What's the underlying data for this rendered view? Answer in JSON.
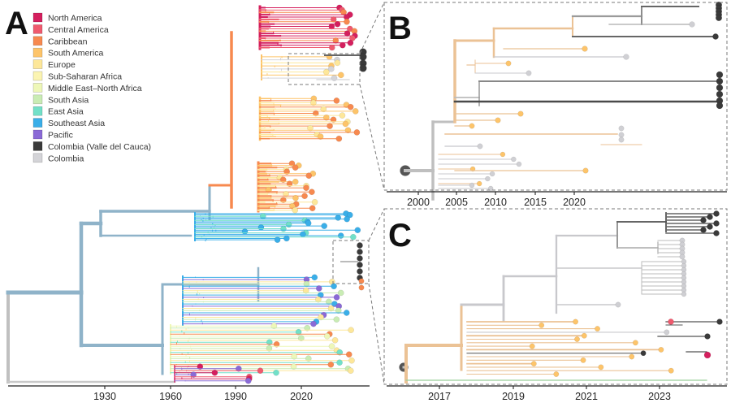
{
  "panels": {
    "A": {
      "label": "A",
      "axis_ticks": [
        "1930",
        "1960",
        "1990",
        "2020"
      ]
    },
    "B": {
      "label": "B",
      "axis_ticks": [
        "2000",
        "2005",
        "2010",
        "2015",
        "2020"
      ]
    },
    "C": {
      "label": "C",
      "axis_ticks": [
        "2017",
        "2019",
        "2021",
        "2023"
      ]
    }
  },
  "legend": [
    {
      "label": "North America",
      "color": "#d41f5e"
    },
    {
      "label": "Central America",
      "color": "#ef5a6e"
    },
    {
      "label": "Caribbean",
      "color": "#f7894f"
    },
    {
      "label": "South America",
      "color": "#fdc46a"
    },
    {
      "label": "Europe",
      "color": "#fde79a"
    },
    {
      "label": "Sub-Saharan Africa",
      "color": "#fbf4b2"
    },
    {
      "label": "Middle East–North Africa",
      "color": "#eef7b8"
    },
    {
      "label": "South Asia",
      "color": "#c9ecb4"
    },
    {
      "label": "East Asia",
      "color": "#72e0c8"
    },
    {
      "label": "Southeast Asia",
      "color": "#3aaee8"
    },
    {
      "label": "Pacific",
      "color": "#8a6ad6"
    },
    {
      "label": "Colombia (Valle del Cauca)",
      "color": "#3a3a3a"
    },
    {
      "label": "Colombia",
      "color": "#d4d4d8"
    }
  ]
}
